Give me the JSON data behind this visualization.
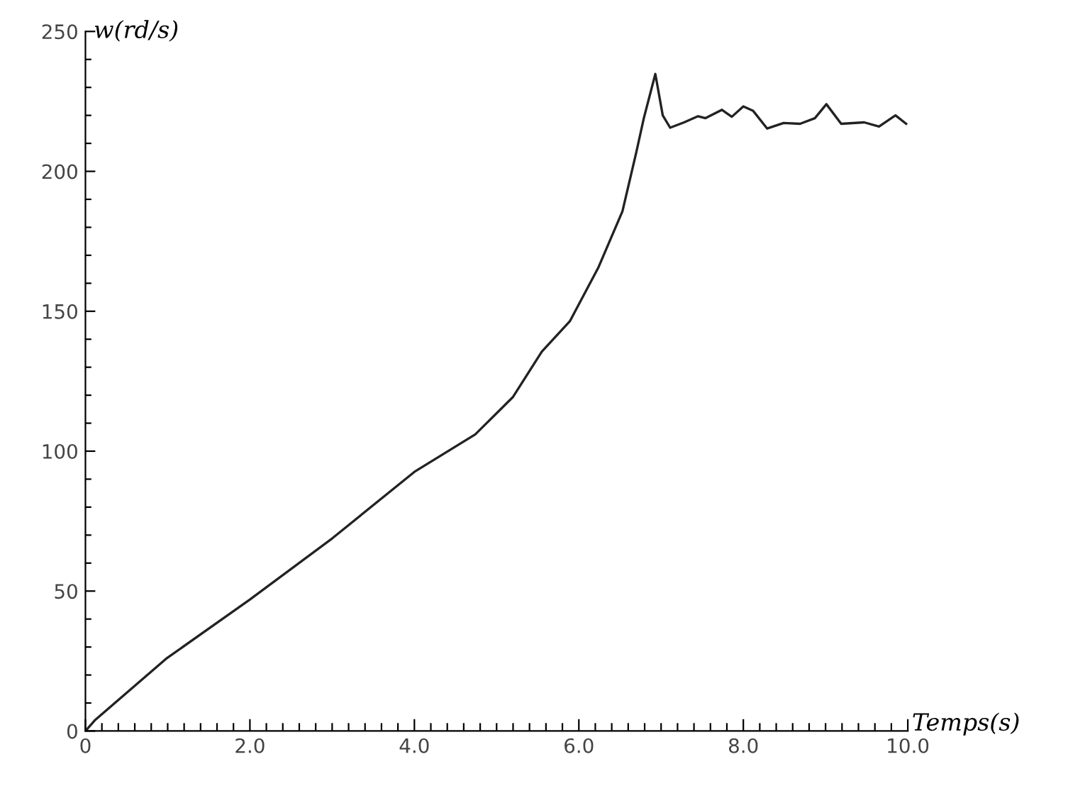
{
  "chart_data": {
    "type": "line",
    "xlabel": "Temps(s)",
    "ylabel": "w(rd/s)",
    "x": [
      0,
      0.12,
      0.98,
      2.0,
      3.0,
      4.0,
      4.74,
      5.2,
      5.55,
      5.89,
      6.24,
      6.53,
      6.7,
      6.79,
      6.93,
      7.02,
      7.11,
      7.28,
      7.45,
      7.54,
      7.74,
      7.86,
      8.0,
      8.12,
      8.29,
      8.49,
      8.69,
      8.87,
      9.01,
      9.19,
      9.47,
      9.65,
      9.85,
      9.98
    ],
    "series": [
      {
        "color": "#222222",
        "values": [
          0,
          4,
          25.8,
          47,
          68.8,
          92.6,
          106,
          119.4,
          135.6,
          146.4,
          165.8,
          185.7,
          207,
          219,
          234.8,
          220,
          215.6,
          217.5,
          219.7,
          219,
          222,
          219.5,
          223.2,
          221.6,
          215.3,
          217.3,
          217,
          219,
          224,
          217,
          217.5,
          216,
          220,
          217
        ]
      }
    ],
    "xlim": [
      0,
      10
    ],
    "xticks": [
      0,
      {
        "value": 0.2,
        "label": null
      },
      {
        "value": 0.4,
        "label": null
      },
      {
        "value": 0.6,
        "label": null
      },
      {
        "value": 0.8,
        "label": null
      },
      {
        "value": 1.0,
        "label": null
      },
      {
        "value": 1.2,
        "label": null
      },
      {
        "value": 1.4,
        "label": null
      },
      {
        "value": 1.6,
        "label": null
      },
      {
        "value": 1.8,
        "label": null
      },
      {
        "value": 2,
        "label": "2.0"
      },
      {
        "value": 2.2,
        "label": null
      },
      {
        "value": 2.4,
        "label": null
      },
      {
        "value": 2.6,
        "label": null
      },
      {
        "value": 2.8,
        "label": null
      },
      {
        "value": 3.0,
        "label": null
      },
      {
        "value": 3.2,
        "label": null
      },
      {
        "value": 3.4,
        "label": null
      },
      {
        "value": 3.6,
        "label": null
      },
      {
        "value": 3.8,
        "label": null
      },
      {
        "value": 4,
        "label": "4.0"
      },
      {
        "value": 4.2,
        "label": null
      },
      {
        "value": 4.4,
        "label": null
      },
      {
        "value": 4.6,
        "label": null
      },
      {
        "value": 4.8,
        "label": null
      },
      {
        "value": 5.0,
        "label": null
      },
      {
        "value": 5.2,
        "label": null
      },
      {
        "value": 5.4,
        "label": null
      },
      {
        "value": 5.6,
        "label": null
      },
      {
        "value": 5.8,
        "label": null
      },
      {
        "value": 6,
        "label": "6.0"
      },
      {
        "value": 6.2,
        "label": null
      },
      {
        "value": 6.4,
        "label": null
      },
      {
        "value": 6.6,
        "label": null
      },
      {
        "value": 6.8,
        "label": null
      },
      {
        "value": 7.0,
        "label": null
      },
      {
        "value": 7.2,
        "label": null
      },
      {
        "value": 7.4,
        "label": null
      },
      {
        "value": 7.6,
        "label": null
      },
      {
        "value": 7.8,
        "label": null
      },
      {
        "value": 8,
        "label": "8.0"
      },
      {
        "value": 8.2,
        "label": null
      },
      {
        "value": 8.4,
        "label": null
      },
      {
        "value": 8.6,
        "label": null
      },
      {
        "value": 8.8,
        "label": null
      },
      {
        "value": 9.0,
        "label": null
      },
      {
        "value": 9.2,
        "label": null
      },
      {
        "value": 9.4,
        "label": null
      },
      {
        "value": 9.6,
        "label": null
      },
      {
        "value": 9.8,
        "label": null
      },
      {
        "value": 10,
        "label": "10.0"
      }
    ],
    "ylim": [
      0,
      250
    ],
    "yticks": [
      0,
      {
        "value": 10,
        "label": null
      },
      {
        "value": 20,
        "label": null
      },
      {
        "value": 30,
        "label": null
      },
      {
        "value": 40,
        "label": null
      },
      50,
      {
        "value": 60,
        "label": null
      },
      {
        "value": 70,
        "label": null
      },
      {
        "value": 80,
        "label": null
      },
      {
        "value": 90,
        "label": null
      },
      100,
      {
        "value": 110,
        "label": null
      },
      {
        "value": 120,
        "label": null
      },
      {
        "value": 130,
        "label": null
      },
      {
        "value": 140,
        "label": null
      },
      150,
      {
        "value": 160,
        "label": null
      },
      {
        "value": 170,
        "label": null
      },
      {
        "value": 180,
        "label": null
      },
      {
        "value": 190,
        "label": null
      },
      200,
      {
        "value": 210,
        "label": null
      },
      {
        "value": 220,
        "label": null
      },
      {
        "value": 230,
        "label": null
      },
      {
        "value": 240,
        "label": null
      },
      250
    ],
    "grid": false,
    "legend": false,
    "marker": "none",
    "line_style": "solid"
  }
}
